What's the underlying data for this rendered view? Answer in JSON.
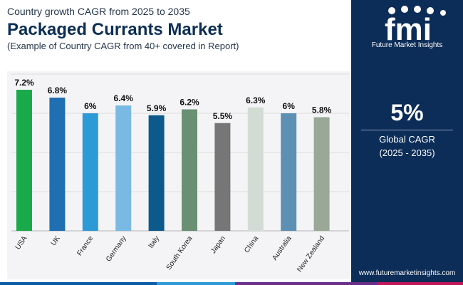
{
  "header": {
    "subtitle_top": "Country growth CAGR from 2025 to 2035",
    "title": "Packaged Currants Market",
    "caption": "(Example of Country CAGR from 40+ covered in Report)"
  },
  "side_panel": {
    "logo_text": "fmi",
    "logo_caption": "Future Market Insights",
    "cagr_value": "5%",
    "cagr_label": "Global CAGR",
    "cagr_period": "(2025 - 2035)",
    "website": "www.futuremarketinsights.com",
    "background_color": "#0c2d57"
  },
  "bottom_strip_colors": [
    "#0d5aa7",
    "#2e9bd6",
    "#6a2f8a",
    "#c2185b"
  ],
  "chart_data": {
    "type": "bar",
    "categories": [
      "USA",
      "UK",
      "France",
      "Germany",
      "Italy",
      "South Korea",
      "Japan",
      "China",
      "Australia",
      "New Zealand"
    ],
    "values": [
      7.2,
      6.8,
      6.0,
      6.4,
      5.9,
      6.2,
      5.5,
      6.3,
      6.0,
      5.8
    ],
    "labels": [
      "7.2%",
      "6.8%",
      "6%",
      "6.4%",
      "5.9%",
      "6.2%",
      "5.5%",
      "6.3%",
      "6%",
      "5.8%"
    ],
    "colors": [
      "#1aaa4b",
      "#1f6fb2",
      "#2d9ad8",
      "#7ab9e3",
      "#0c5a8c",
      "#6b8f73",
      "#767676",
      "#d2dcd5",
      "#5d90b3",
      "#9aa897"
    ],
    "ylim": [
      0,
      7.2
    ],
    "grid": true,
    "title": "",
    "xlabel": "",
    "ylabel": ""
  }
}
